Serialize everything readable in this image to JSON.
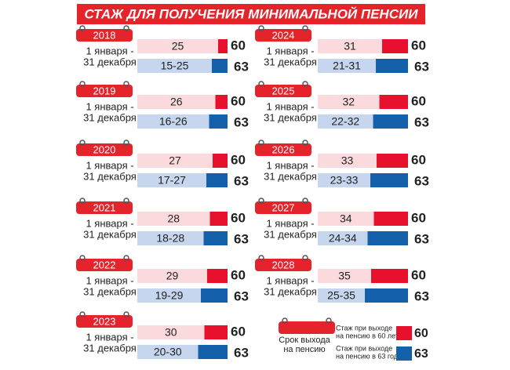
{
  "header": {
    "title": "СТАЖ ДЛЯ ПОЛУЧЕНИЯ МИНИМАЛЬНОЙ ПЕНСИИ"
  },
  "years": [
    {
      "year": "2018",
      "period": [
        "1 января -",
        "31 декабря"
      ],
      "stazh_60": "25",
      "age_60": "60",
      "stazh_63": "15-25",
      "age_63": "63"
    },
    {
      "year": "2019",
      "period": [
        "1 января -",
        "31 декабря"
      ],
      "stazh_60": "26",
      "age_60": "60",
      "stazh_63": "16-26",
      "age_63": "63"
    },
    {
      "year": "2020",
      "period": [
        "1 января -",
        "31 декабря"
      ],
      "stazh_60": "27",
      "age_60": "60",
      "stazh_63": "17-27",
      "age_63": "63"
    },
    {
      "year": "2021",
      "period": [
        "1 января -",
        "31 декабря"
      ],
      "stazh_60": "28",
      "age_60": "60",
      "stazh_63": "18-28",
      "age_63": "63"
    },
    {
      "year": "2022",
      "period": [
        "1 января -",
        "31 декабря"
      ],
      "stazh_60": "29",
      "age_60": "60",
      "stazh_63": "19-29",
      "age_63": "63"
    },
    {
      "year": "2023",
      "period": [
        "1 января -",
        "31 декабря"
      ],
      "stazh_60": "30",
      "age_60": "60",
      "stazh_63": "20-30",
      "age_63": "63"
    },
    {
      "year": "2024",
      "period": [
        "1 января -",
        "31 декабря"
      ],
      "stazh_60": "31",
      "age_60": "60",
      "stazh_63": "21-31",
      "age_63": "63"
    },
    {
      "year": "2025",
      "period": [
        "1 января -",
        "31 декабря"
      ],
      "stazh_60": "32",
      "age_60": "60",
      "stazh_63": "22-32",
      "age_63": "63"
    },
    {
      "year": "2026",
      "period": [
        "1 января -",
        "31 декабря"
      ],
      "stazh_60": "33",
      "age_60": "60",
      "stazh_63": "23-33",
      "age_63": "63"
    },
    {
      "year": "2027",
      "period": [
        "1 января -",
        "31 декабря"
      ],
      "stazh_60": "34",
      "age_60": "60",
      "stazh_63": "24-34",
      "age_63": "63"
    },
    {
      "year": "2028",
      "period": [
        "1 января -",
        "31 декабря"
      ],
      "stazh_60": "35",
      "age_60": "60",
      "stazh_63": "25-35",
      "age_63": "63"
    }
  ],
  "legend": {
    "retirement_term": [
      "Срок выхода",
      "на пенсию"
    ],
    "items": [
      {
        "label": [
          "Стаж при выходе",
          "на пенсию в 60 лет"
        ],
        "age": "60"
      },
      {
        "label": [
          "Стаж при выходе",
          "на пенсию в 63 года"
        ],
        "age": "63"
      }
    ]
  }
}
